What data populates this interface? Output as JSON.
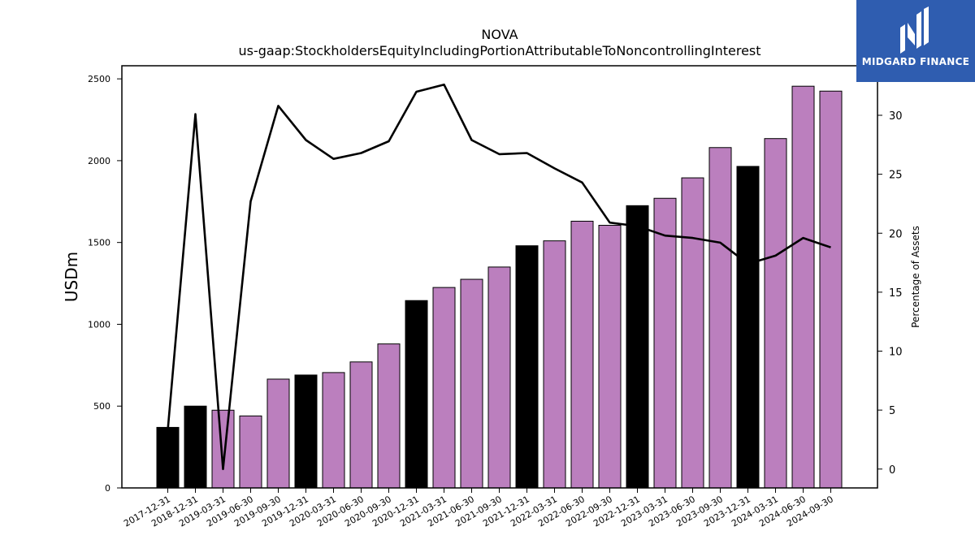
{
  "chart_data": {
    "type": "bar",
    "title": "NOVA",
    "subtitle": "us-gaap:StockholdersEquityIncludingPortionAttributableToNoncontrollingInterest",
    "ylabel": "USDm",
    "y2label": "Percentage of Assets",
    "ylim": [
      0,
      2580
    ],
    "y2lim": [
      -1.6,
      34.2
    ],
    "yticks": [
      0,
      500,
      1000,
      1500,
      2000,
      2500
    ],
    "y2ticks": [
      0,
      5,
      10,
      15,
      20,
      25,
      30
    ],
    "grid": false,
    "categories": [
      "2017-12-31",
      "2018-12-31",
      "2019-03-31",
      "2019-06-30",
      "2019-09-30",
      "2019-12-31",
      "2020-03-31",
      "2020-06-30",
      "2020-09-30",
      "2020-12-31",
      "2021-03-31",
      "2021-06-30",
      "2021-09-30",
      "2021-12-31",
      "2022-03-31",
      "2022-06-30",
      "2022-09-30",
      "2022-12-31",
      "2023-03-31",
      "2023-06-30",
      "2023-09-30",
      "2023-12-31",
      "2024-03-31",
      "2024-06-30",
      "2024-09-30"
    ],
    "series": [
      {
        "type": "bar",
        "axis": "left",
        "values": [
          370,
          500,
          475,
          440,
          665,
          690,
          705,
          770,
          880,
          1145,
          1225,
          1275,
          1350,
          1480,
          1510,
          1630,
          1605,
          1725,
          1770,
          1895,
          2080,
          1965,
          2135,
          2455,
          2425
        ],
        "bar_colors": [
          "#000000",
          "#000000",
          "#bb7fbe",
          "#bb7fbe",
          "#bb7fbe",
          "#000000",
          "#bb7fbe",
          "#bb7fbe",
          "#bb7fbe",
          "#000000",
          "#bb7fbe",
          "#bb7fbe",
          "#bb7fbe",
          "#000000",
          "#bb7fbe",
          "#bb7fbe",
          "#bb7fbe",
          "#000000",
          "#bb7fbe",
          "#bb7fbe",
          "#bb7fbe",
          "#000000",
          "#bb7fbe",
          "#bb7fbe",
          "#bb7fbe"
        ]
      },
      {
        "type": "line",
        "axis": "right",
        "color": "#000000",
        "values": [
          3.3,
          30.1,
          0.0,
          22.7,
          30.8,
          27.9,
          26.3,
          26.8,
          27.8,
          32.0,
          32.6,
          27.9,
          26.7,
          26.8,
          25.5,
          24.3,
          20.9,
          20.6,
          19.8,
          19.6,
          19.2,
          17.4,
          18.1,
          19.6,
          18.8
        ]
      }
    ]
  },
  "logo": {
    "text": "MIDGARD FINANCE",
    "icon": "midgard-logo-icon",
    "background": "#2f5db0"
  }
}
